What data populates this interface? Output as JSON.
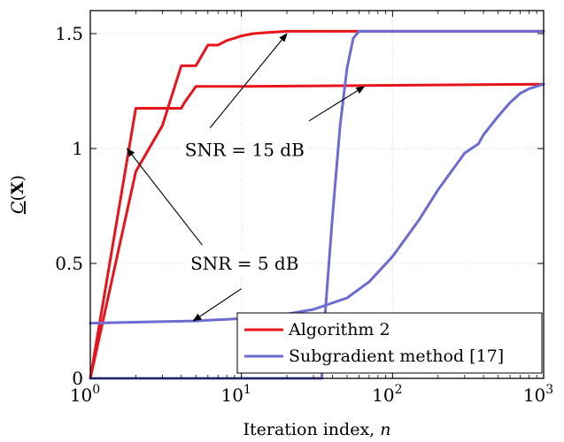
{
  "chart_data": {
    "type": "line",
    "xlabel": "Iteration index, n",
    "ylabel": "C(X)",
    "xscale": "log",
    "xlim": [
      1,
      1000
    ],
    "ylim": [
      0,
      1.6
    ],
    "grid": true,
    "legend_position": "bottom-right",
    "x_ticks": [
      {
        "value": 1,
        "base": "10",
        "exp": "0"
      },
      {
        "value": 10,
        "base": "10",
        "exp": "1"
      },
      {
        "value": 100,
        "base": "10",
        "exp": "2"
      },
      {
        "value": 1000,
        "base": "10",
        "exp": "3"
      }
    ],
    "y_ticks": [
      {
        "value": 0,
        "label": "0"
      },
      {
        "value": 0.5,
        "label": "0.5"
      },
      {
        "value": 1,
        "label": "1"
      },
      {
        "value": 1.5,
        "label": "1.5"
      }
    ],
    "series": [
      {
        "name": "Algorithm 2",
        "legend": true,
        "color": "#e8141c",
        "points": [
          [
            1,
            0
          ],
          [
            2,
            1.175
          ],
          [
            4,
            1.175
          ],
          [
            4.2,
            1.2
          ],
          [
            5,
            1.27
          ],
          [
            10,
            1.27
          ],
          [
            100,
            1.275
          ],
          [
            1000,
            1.28
          ]
        ]
      },
      {
        "legend": false,
        "color": "#e8141c",
        "points": [
          [
            1,
            0
          ],
          [
            2,
            0.9
          ],
          [
            3,
            1.1
          ],
          [
            4,
            1.36
          ],
          [
            5,
            1.36
          ],
          [
            6,
            1.45
          ],
          [
            7,
            1.45
          ],
          [
            8,
            1.47
          ],
          [
            9,
            1.48
          ],
          [
            10,
            1.49
          ],
          [
            12,
            1.5
          ],
          [
            15,
            1.505
          ],
          [
            20,
            1.51
          ],
          [
            30,
            1.51
          ],
          [
            1000,
            1.51
          ]
        ]
      },
      {
        "name": "Subgradient method [17]",
        "legend": true,
        "color": "#6b6bd2",
        "points": [
          [
            1,
            0
          ],
          [
            30,
            0
          ],
          [
            34,
            0
          ],
          [
            36,
            0.3
          ],
          [
            40,
            0.7
          ],
          [
            45,
            1.1
          ],
          [
            50,
            1.35
          ],
          [
            55,
            1.48
          ],
          [
            60,
            1.51
          ],
          [
            100,
            1.51
          ],
          [
            1000,
            1.51
          ]
        ]
      },
      {
        "legend": false,
        "color": "#6b6bd2",
        "points": [
          [
            1,
            0.24
          ],
          [
            5,
            0.25
          ],
          [
            10,
            0.26
          ],
          [
            20,
            0.28
          ],
          [
            30,
            0.3
          ],
          [
            50,
            0.35
          ],
          [
            70,
            0.42
          ],
          [
            100,
            0.53
          ],
          [
            150,
            0.69
          ],
          [
            200,
            0.82
          ],
          [
            300,
            0.98
          ],
          [
            370,
            1.02
          ],
          [
            400,
            1.06
          ],
          [
            500,
            1.14
          ],
          [
            600,
            1.2
          ],
          [
            700,
            1.24
          ],
          [
            800,
            1.26
          ],
          [
            1000,
            1.28
          ]
        ]
      }
    ],
    "annotations": [
      {
        "name": "annotation-snr-15",
        "text": "SNR = 15 dB",
        "anchor": [
          10.5,
          0.995
        ],
        "arrows": [
          [
            6.2,
            1.09,
            20,
            1.5
          ],
          [
            28,
            1.12,
            65,
            1.27
          ]
        ]
      },
      {
        "name": "annotation-snr-5",
        "text": "SNR = 5 dB",
        "anchor": [
          10.5,
          0.5
        ],
        "arrows": [
          [
            5.5,
            0.58,
            1.75,
            1.0
          ],
          [
            10,
            0.39,
            4.8,
            0.25
          ]
        ]
      }
    ]
  }
}
